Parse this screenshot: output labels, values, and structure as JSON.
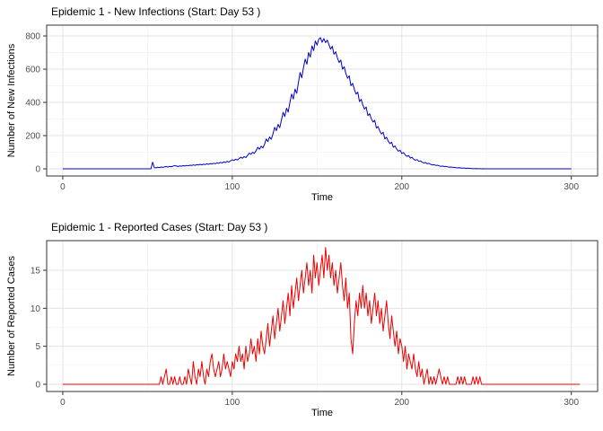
{
  "theme": {
    "background": "#ffffff",
    "panel_background": "#ffffff",
    "panel_border": "#333333",
    "grid_major": "#e3e3e3",
    "grid_minor": "#f1f1f1",
    "tick_color": "#333333",
    "tick_label_color": "#4d4d4d",
    "title_color": "#000000"
  },
  "chart_data": [
    {
      "type": "line",
      "title": "Epidemic 1 - New Infections (Start: Day 53 )",
      "xlabel": "Time",
      "ylabel": "Number of New Infections",
      "series_name": "new_infections",
      "line_color": "#0000cc",
      "legend": "none",
      "grid": true,
      "x_start": 0,
      "x_step": 1,
      "x_ticks": [
        0,
        100,
        200,
        300
      ],
      "x_minor_ticks": [
        50,
        150,
        250
      ],
      "y_ticks": [
        0,
        200,
        400,
        600,
        800
      ],
      "y_minor_ticks": [
        100,
        300,
        500,
        700
      ],
      "x_domain": [
        -9.5,
        315.5
      ],
      "y_domain": [
        -43,
        865
      ],
      "values": [
        0,
        0,
        0,
        0,
        0,
        0,
        0,
        0,
        0,
        0,
        0,
        0,
        0,
        0,
        0,
        0,
        0,
        0,
        0,
        0,
        0,
        0,
        0,
        0,
        0,
        0,
        0,
        0,
        0,
        0,
        0,
        0,
        0,
        0,
        0,
        0,
        0,
        0,
        0,
        0,
        0,
        0,
        0,
        0,
        0,
        0,
        0,
        0,
        0,
        0,
        0,
        0,
        0,
        40,
        8,
        6,
        10,
        8,
        11,
        9,
        12,
        14,
        11,
        15,
        13,
        16,
        20,
        17,
        14,
        18,
        16,
        19,
        17,
        21,
        18,
        22,
        20,
        24,
        21,
        25,
        23,
        27,
        24,
        28,
        26,
        30,
        27,
        32,
        29,
        34,
        31,
        36,
        33,
        39,
        35,
        42,
        38,
        45,
        41,
        49,
        55,
        50,
        58,
        53,
        62,
        70,
        64,
        74,
        68,
        80,
        95,
        87,
        100,
        93,
        108,
        130,
        118,
        136,
        126,
        148,
        180,
        164,
        192,
        178,
        210,
        250,
        230,
        268,
        248,
        295,
        340,
        315,
        365,
        342,
        400,
        450,
        420,
        480,
        455,
        520,
        580,
        548,
        610,
        660,
        630,
        700,
        672,
        740,
        712,
        770,
        745,
        780,
        790,
        762,
        784,
        760,
        775,
        748,
        720,
        738,
        690,
        705,
        668,
        640,
        655,
        600,
        615,
        575,
        545,
        560,
        500,
        515,
        478,
        450,
        462,
        405,
        418,
        385,
        360,
        372,
        320,
        332,
        302,
        282,
        292,
        245,
        255,
        228,
        210,
        220,
        180,
        190,
        166,
        152,
        160,
        130,
        138,
        118,
        106,
        112,
        92,
        98,
        84,
        75,
        80,
        65,
        70,
        58,
        52,
        56,
        45,
        48,
        40,
        35,
        38,
        31,
        33,
        27,
        23,
        25,
        21,
        22,
        18,
        15,
        17,
        14,
        15,
        12,
        10,
        11,
        9,
        9,
        7,
        6,
        7,
        5,
        5,
        4,
        3,
        4,
        3,
        2,
        2,
        1,
        2,
        1,
        1,
        0,
        1,
        0,
        0,
        0,
        0,
        0,
        0,
        0,
        0,
        0,
        0,
        0,
        0,
        0,
        0,
        0,
        0,
        0,
        0,
        0,
        0,
        0,
        0,
        0,
        0,
        0,
        0,
        0,
        0,
        0,
        0,
        0,
        0,
        0,
        0,
        0,
        0,
        0,
        0,
        0,
        0,
        0,
        0,
        0,
        0,
        0,
        0,
        0,
        0,
        0,
        0,
        0,
        0
      ]
    },
    {
      "type": "line",
      "title": "Epidemic 1 - Reported Cases (Start: Day 53 )",
      "xlabel": "Time",
      "ylabel": "Number of Reported Cases",
      "series_name": "reported_cases",
      "line_color": "#ee0000",
      "legend": "none",
      "grid": true,
      "x_start": 0,
      "x_step": 1,
      "x_ticks": [
        0,
        100,
        200,
        300
      ],
      "x_minor_ticks": [
        50,
        150,
        250
      ],
      "y_ticks": [
        0,
        5,
        10,
        15
      ],
      "y_minor_ticks": [
        2.5,
        7.5,
        12.5
      ],
      "x_domain": [
        -9.5,
        315.5
      ],
      "y_domain": [
        -0.95,
        18.9
      ],
      "values": [
        0,
        0,
        0,
        0,
        0,
        0,
        0,
        0,
        0,
        0,
        0,
        0,
        0,
        0,
        0,
        0,
        0,
        0,
        0,
        0,
        0,
        0,
        0,
        0,
        0,
        0,
        0,
        0,
        0,
        0,
        0,
        0,
        0,
        0,
        0,
        0,
        0,
        0,
        0,
        0,
        0,
        0,
        0,
        0,
        0,
        0,
        0,
        0,
        0,
        0,
        0,
        0,
        0,
        0,
        0,
        0,
        0,
        0,
        1,
        0,
        1,
        2,
        0,
        0,
        1,
        0,
        1,
        0,
        0,
        1,
        0,
        0,
        1,
        0,
        2,
        1,
        0,
        3,
        1,
        0,
        2,
        1,
        3,
        1,
        0,
        2,
        1,
        3,
        4,
        2,
        1,
        2,
        3,
        1,
        2,
        4,
        2,
        3,
        2,
        1,
        3,
        2,
        4,
        3,
        5,
        3,
        4,
        2,
        5,
        3,
        4,
        6,
        4,
        5,
        3,
        6,
        4,
        7,
        5,
        4,
        6,
        8,
        5,
        7,
        9,
        6,
        8,
        10,
        7,
        9,
        11,
        8,
        10,
        12,
        9,
        13,
        10,
        12,
        14,
        11,
        13,
        15,
        12,
        14,
        16,
        13,
        15,
        12,
        17,
        14,
        16,
        13,
        15,
        17,
        14,
        18,
        15,
        17,
        14,
        16,
        13,
        15,
        12,
        14,
        16,
        13,
        11,
        14,
        10,
        12,
        6,
        4,
        8,
        11,
        9,
        12,
        10,
        13,
        10,
        12,
        9,
        11,
        8,
        10,
        12,
        9,
        11,
        8,
        10,
        7,
        9,
        11,
        8,
        6,
        9,
        7,
        5,
        7,
        4,
        6,
        5,
        3,
        5,
        2,
        4,
        3,
        2,
        4,
        2,
        1,
        3,
        1,
        2,
        0,
        1,
        2,
        0,
        1,
        0,
        1,
        0,
        1,
        2,
        1,
        0,
        1,
        0,
        1,
        0,
        0,
        0,
        0,
        0,
        1,
        0,
        1,
        0,
        1,
        0,
        0,
        0,
        0,
        1,
        0,
        1,
        0,
        1,
        0,
        0,
        0,
        0,
        0,
        0,
        0,
        0,
        0,
        0,
        0,
        0,
        0,
        0,
        0,
        0,
        0,
        0,
        0,
        0,
        0,
        0,
        0,
        0,
        0,
        0,
        0,
        0,
        0,
        0,
        0,
        0,
        0,
        0,
        0,
        0,
        0,
        0,
        0,
        0,
        0,
        0,
        0,
        0,
        0,
        0,
        0,
        0,
        0,
        0,
        0,
        0,
        0,
        0,
        0,
        0,
        0,
        0,
        0
      ]
    }
  ]
}
